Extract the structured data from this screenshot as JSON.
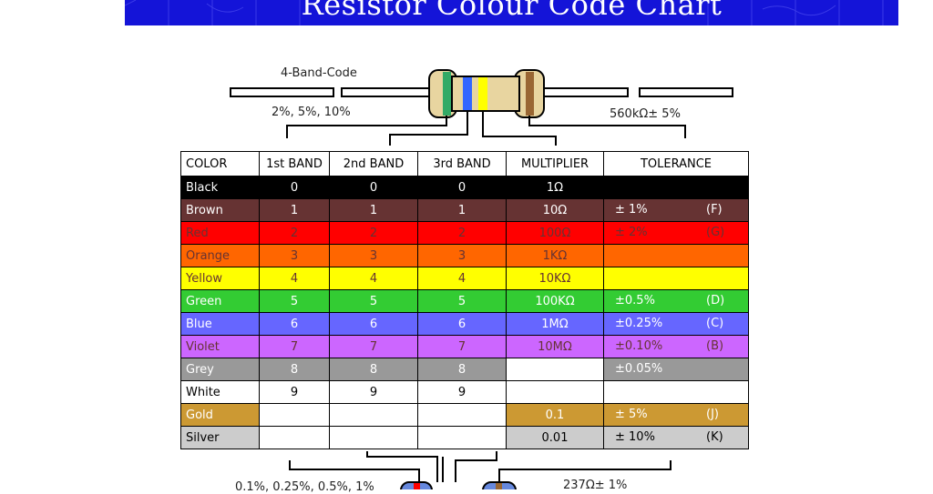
{
  "header": {
    "title": "Resistor Colour Code Chart"
  },
  "top_diagram": {
    "band_code_label": "4-Band-Code",
    "tolerance_note": "2%, 5%, 10%",
    "example_value": "560kΩ± 5%"
  },
  "bottom_diagram": {
    "tolerance_note": "0.1%, 0.25%, 0.5%, 1%",
    "example_value": "237Ω± 1%"
  },
  "table": {
    "headers": [
      "COLOR",
      "1st BAND",
      "2nd BAND",
      "3rd BAND",
      "MULTIPLIER",
      "TOLERANCE"
    ],
    "rows": [
      {
        "name": "Black",
        "bg": "#000000",
        "fg": "#ffffff",
        "b1": "0",
        "b2": "0",
        "b3": "0",
        "mult": "1Ω",
        "tol": "",
        "code": ""
      },
      {
        "name": "Brown",
        "bg": "#663333",
        "fg": "#ffffff",
        "b1": "1",
        "b2": "1",
        "b3": "1",
        "mult": "10Ω",
        "tol": "±   1%",
        "code": "(F)"
      },
      {
        "name": "Red",
        "bg": "#ff0000",
        "fg": "#663333",
        "b1": "2",
        "b2": "2",
        "b3": "2",
        "mult": "100Ω",
        "tol": "±   2%",
        "code": "(G)"
      },
      {
        "name": "Orange",
        "bg": "#ff6600",
        "fg": "#663333",
        "b1": "3",
        "b2": "3",
        "b3": "3",
        "mult": "1KΩ",
        "tol": "",
        "code": ""
      },
      {
        "name": "Yellow",
        "bg": "#ffff00",
        "fg": "#663333",
        "b1": "4",
        "b2": "4",
        "b3": "4",
        "mult": "10KΩ",
        "tol": "",
        "code": ""
      },
      {
        "name": "Green",
        "bg": "#33cc33",
        "fg": "#ffffff",
        "b1": "5",
        "b2": "5",
        "b3": "5",
        "mult": "100KΩ",
        "tol": "±0.5%",
        "code": "(D)"
      },
      {
        "name": "Blue",
        "bg": "#6666ff",
        "fg": "#ffffff",
        "b1": "6",
        "b2": "6",
        "b3": "6",
        "mult": "1MΩ",
        "tol": "±0.25%",
        "code": "(C)"
      },
      {
        "name": "Violet",
        "bg": "#cc66ff",
        "fg": "#663333",
        "b1": "7",
        "b2": "7",
        "b3": "7",
        "mult": "10MΩ",
        "tol": "±0.10%",
        "code": "(B)"
      },
      {
        "name": "Grey",
        "bg": "#999999",
        "fg": "#ffffff",
        "b1": "8",
        "b2": "8",
        "b3": "8",
        "mult": "",
        "tol": "±0.05%",
        "code": ""
      },
      {
        "name": "White",
        "bg": "#ffffff",
        "fg": "#000000",
        "b1": "9",
        "b2": "9",
        "b3": "9",
        "mult": "",
        "tol": "",
        "code": ""
      },
      {
        "name": "Gold",
        "bg": "#cc9933",
        "fg": "#ffffff",
        "b1": "",
        "b2": "",
        "b3": "",
        "mult": "0.1",
        "tol": "±   5%",
        "code": "(J)"
      },
      {
        "name": "Silver",
        "bg": "#cccccc",
        "fg": "#000000",
        "b1": "",
        "b2": "",
        "b3": "",
        "mult": "0.01",
        "tol": "±  10%",
        "code": "(K)"
      }
    ]
  }
}
